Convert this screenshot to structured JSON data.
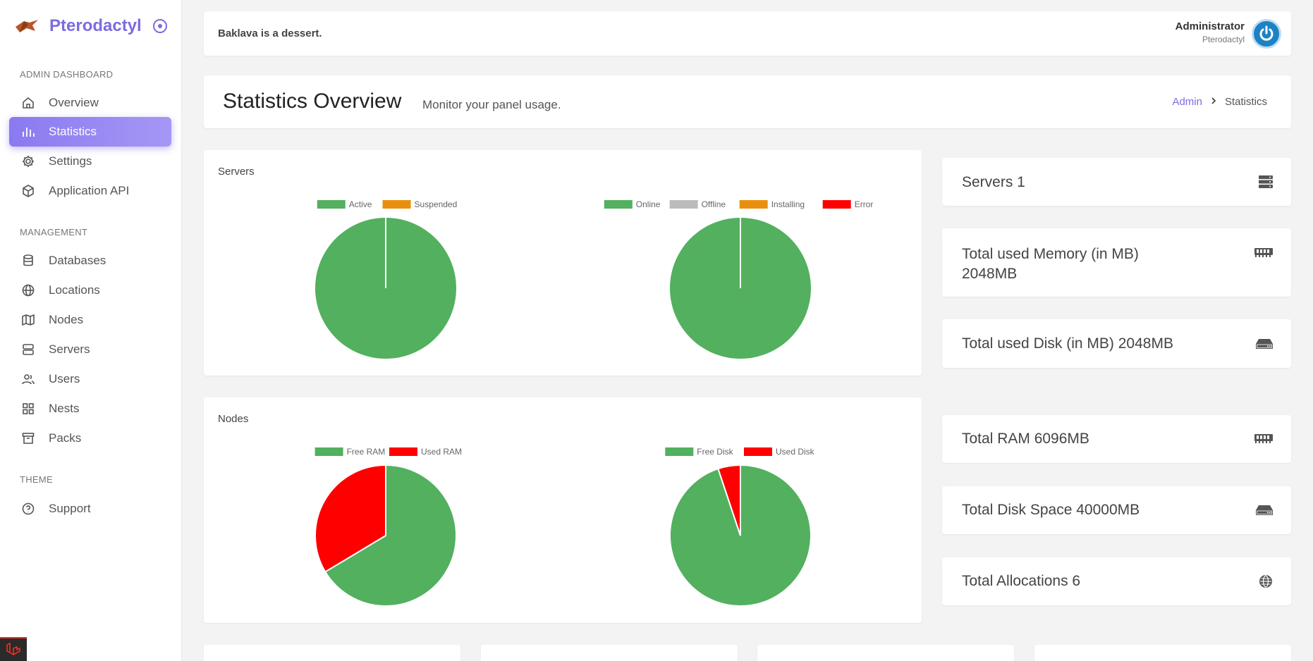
{
  "brand": {
    "name": "Pterodactyl"
  },
  "sidebar": {
    "headings": {
      "admin": "ADMIN DASHBOARD",
      "management": "MANAGEMENT",
      "theme": "THEME"
    },
    "admin_items": [
      {
        "label": "Overview",
        "icon": "home-icon"
      },
      {
        "label": "Statistics",
        "icon": "bar-chart-icon",
        "active": true
      },
      {
        "label": "Settings",
        "icon": "gear-icon"
      },
      {
        "label": "Application API",
        "icon": "cube-icon"
      }
    ],
    "management_items": [
      {
        "label": "Databases",
        "icon": "database-icon"
      },
      {
        "label": "Locations",
        "icon": "globe-icon"
      },
      {
        "label": "Nodes",
        "icon": "map-icon"
      },
      {
        "label": "Servers",
        "icon": "server-icon"
      },
      {
        "label": "Users",
        "icon": "users-icon"
      },
      {
        "label": "Nests",
        "icon": "grid-icon"
      },
      {
        "label": "Packs",
        "icon": "archive-icon"
      }
    ],
    "theme_items": [
      {
        "label": "Support",
        "icon": "help-circle-icon"
      }
    ]
  },
  "topbar": {
    "message": "Baklava is a dessert.",
    "user_name": "Administrator",
    "user_role": "Pterodactyl"
  },
  "header": {
    "title": "Statistics Overview",
    "subtitle": "Monitor your panel usage.",
    "breadcrumb": {
      "link": "Admin",
      "current": "Statistics"
    }
  },
  "colors": {
    "accent": "#7b6ce0",
    "green": "#52b05e",
    "red": "#ff0000",
    "orange": "#e8900e",
    "gray": "#bbbbbb"
  },
  "cards": {
    "servers_title": "Servers",
    "nodes_title": "Nodes"
  },
  "chart_data": [
    {
      "type": "pie",
      "categories": [
        "Active",
        "Suspended"
      ],
      "values": [
        1,
        0
      ],
      "colors": [
        "#52b05e",
        "#e8900e"
      ],
      "legend": "top"
    },
    {
      "type": "pie",
      "categories": [
        "Online",
        "Offline",
        "Installing",
        "Error"
      ],
      "values": [
        1,
        0,
        0,
        0
      ],
      "colors": [
        "#52b05e",
        "#bbbbbb",
        "#e8900e",
        "#ff0000"
      ],
      "legend": "top"
    },
    {
      "type": "pie",
      "categories": [
        "Free RAM",
        "Used RAM"
      ],
      "values": [
        4048,
        2048
      ],
      "colors": [
        "#52b05e",
        "#ff0000"
      ],
      "legend": "top"
    },
    {
      "type": "pie",
      "categories": [
        "Free Disk",
        "Used Disk"
      ],
      "values": [
        37952,
        2048
      ],
      "colors": [
        "#52b05e",
        "#ff0000"
      ],
      "legend": "top"
    }
  ],
  "stats": [
    {
      "text": "Servers 1",
      "icon": "server-stack-icon"
    },
    {
      "text": "Total used Memory (in MB) 2048MB",
      "icon": "memory-icon"
    },
    {
      "text": "Total used Disk (in MB) 2048MB",
      "icon": "hdd-icon"
    },
    {
      "text": "Total RAM 6096MB",
      "icon": "memory-icon"
    },
    {
      "text": "Total Disk Space 40000MB",
      "icon": "hdd-icon"
    },
    {
      "text": "Total Allocations 6",
      "icon": "globe-icon"
    }
  ]
}
